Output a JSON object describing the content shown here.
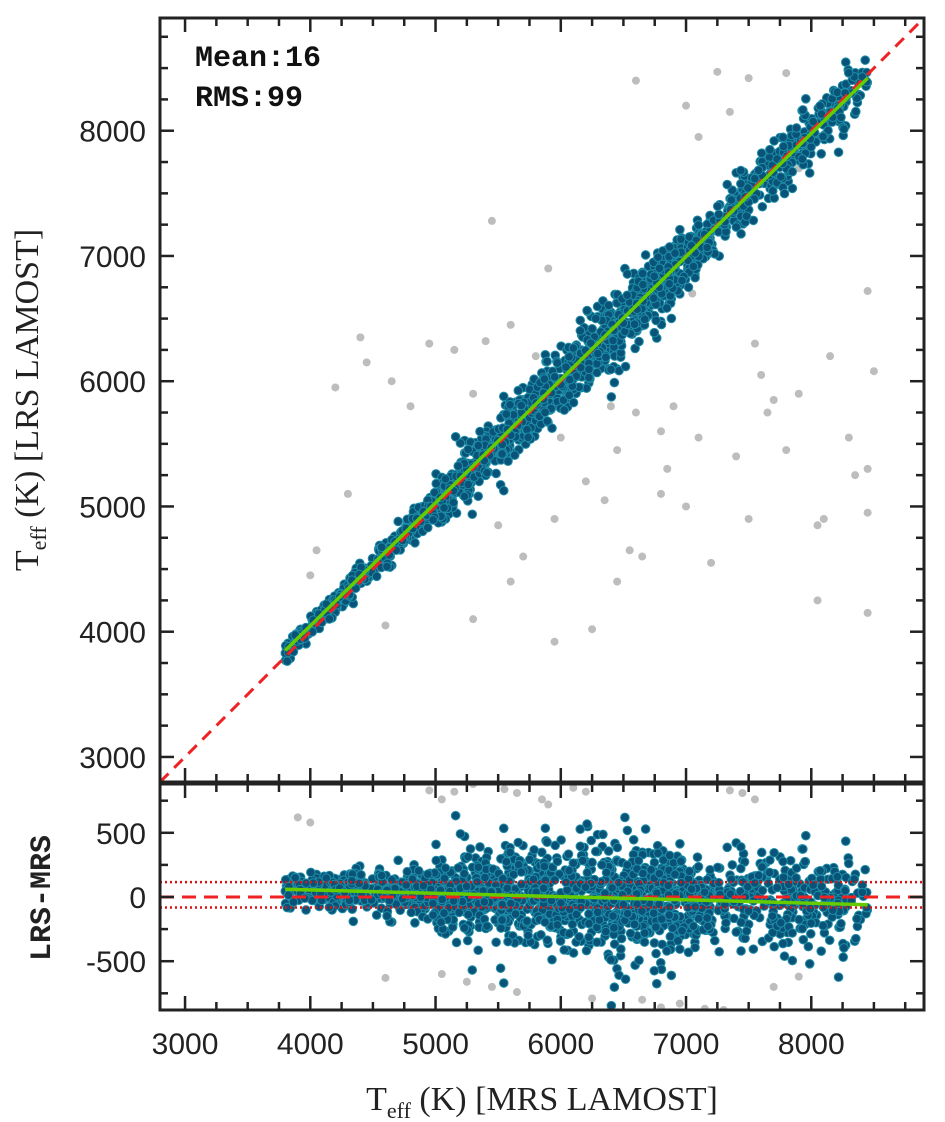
{
  "chart_data": [
    {
      "type": "scatter",
      "panel": "top",
      "xlim": [
        2800,
        8900
      ],
      "ylim": [
        2800,
        8900
      ],
      "x_ticks": [
        3000,
        4000,
        5000,
        6000,
        7000,
        8000
      ],
      "y_ticks": [
        3000,
        4000,
        5000,
        6000,
        7000,
        8000
      ],
      "y_tick_labels": [
        "3000",
        "4000",
        "5000",
        "6000",
        "7000",
        "8000"
      ],
      "ylabel": {
        "main": "T",
        "sub": "eff",
        "rest": " (K) [LRS LAMOST]"
      },
      "annotations": [
        "Mean:16",
        "RMS:99"
      ],
      "one_to_one_line": {
        "x": [
          2800,
          8900
        ],
        "y": [
          2800,
          8900
        ],
        "color": "#ee2222",
        "style": "dashed"
      },
      "fit_line": {
        "x": [
          3800,
          8450
        ],
        "y": [
          3850,
          8420
        ],
        "color": "#66cc00"
      },
      "main_cloud": {
        "x_range": [
          3800,
          8450
        ],
        "scatter_std": 110,
        "count": 1800,
        "color": "#0a5378",
        "edge": "#1f8fa8"
      },
      "outliers": {
        "color": "#bdbdbd",
        "points": [
          [
            6600,
            8400
          ],
          [
            7250,
            8470
          ],
          [
            7500,
            8420
          ],
          [
            7800,
            8460
          ],
          [
            7000,
            8200
          ],
          [
            7100,
            7950
          ],
          [
            7350,
            8150
          ],
          [
            7900,
            7700
          ],
          [
            5450,
            7280
          ],
          [
            5900,
            6900
          ],
          [
            6450,
            6630
          ],
          [
            7050,
            6700
          ],
          [
            7550,
            6300
          ],
          [
            8450,
            6720
          ],
          [
            8500,
            6080
          ],
          [
            4200,
            5950
          ],
          [
            4400,
            6350
          ],
          [
            4450,
            6150
          ],
          [
            4650,
            6000
          ],
          [
            4800,
            5800
          ],
          [
            4950,
            6300
          ],
          [
            5150,
            6250
          ],
          [
            5400,
            6320
          ],
          [
            5600,
            6450
          ],
          [
            4300,
            5100
          ],
          [
            4000,
            4450
          ],
          [
            4050,
            4650
          ],
          [
            4600,
            4050
          ],
          [
            5500,
            4850
          ],
          [
            5700,
            4600
          ],
          [
            5950,
            4900
          ],
          [
            6200,
            5200
          ],
          [
            6350,
            5050
          ],
          [
            6450,
            4400
          ],
          [
            6550,
            4650
          ],
          [
            6650,
            4600
          ],
          [
            6800,
            5100
          ],
          [
            7000,
            5000
          ],
          [
            7200,
            4550
          ],
          [
            7400,
            5400
          ],
          [
            7500,
            4900
          ],
          [
            7700,
            5850
          ],
          [
            7800,
            5450
          ],
          [
            7900,
            5900
          ],
          [
            8050,
            4850
          ],
          [
            8100,
            4900
          ],
          [
            8300,
            5550
          ],
          [
            8350,
            5250
          ],
          [
            8450,
            5300
          ],
          [
            8450,
            4950
          ],
          [
            8450,
            4150
          ],
          [
            8050,
            4250
          ],
          [
            6250,
            4020
          ],
          [
            5950,
            3920
          ],
          [
            6450,
            5450
          ],
          [
            6800,
            5600
          ],
          [
            6600,
            5750
          ],
          [
            6850,
            5300
          ],
          [
            5200,
            5200
          ],
          [
            5600,
            4400
          ],
          [
            5300,
            4100
          ],
          [
            7100,
            5550
          ],
          [
            6900,
            5800
          ],
          [
            6000,
            5550
          ],
          [
            7600,
            6050
          ],
          [
            7650,
            5750
          ],
          [
            8150,
            6200
          ],
          [
            5800,
            6200
          ],
          [
            5300,
            5900
          ],
          [
            6400,
            5800
          ]
        ]
      }
    },
    {
      "type": "scatter",
      "panel": "bottom",
      "xlim": [
        2800,
        8900
      ],
      "ylim": [
        -880,
        880
      ],
      "x_ticks": [
        3000,
        4000,
        5000,
        6000,
        7000,
        8000
      ],
      "x_tick_labels": [
        "3000",
        "4000",
        "5000",
        "6000",
        "7000",
        "8000"
      ],
      "y_ticks": [
        -500,
        0,
        500
      ],
      "y_tick_labels": [
        "-500",
        "0",
        "500"
      ],
      "xlabel": {
        "main": "T",
        "sub": "eff",
        "rest": " (K) [MRS LAMOST]"
      },
      "ylabel": "LRS-MRS",
      "zero_line": {
        "y": 0,
        "color": "#ee2222",
        "style": "dashed"
      },
      "rms_lines": {
        "y": [
          116,
          -82
        ],
        "color": "#ee2222",
        "style": "dotted"
      },
      "fit_line": {
        "x": [
          3800,
          8450
        ],
        "y": [
          60,
          -60
        ],
        "color": "#66cc00"
      },
      "residual_cloud": {
        "x_range": [
          3800,
          8450
        ],
        "count": 1800,
        "color": "#0a5378",
        "edge": "#1f8fa8"
      },
      "outliers": {
        "color": "#bdbdbd",
        "points": [
          [
            3900,
            620
          ],
          [
            4000,
            580
          ],
          [
            4600,
            -630
          ],
          [
            5150,
            820
          ],
          [
            5050,
            760
          ],
          [
            5300,
            880
          ],
          [
            5550,
            840
          ],
          [
            5650,
            810
          ],
          [
            5850,
            760
          ],
          [
            5900,
            720
          ],
          [
            6100,
            850
          ],
          [
            6200,
            820
          ],
          [
            5050,
            -600
          ],
          [
            5250,
            -660
          ],
          [
            5450,
            -700
          ],
          [
            5650,
            -740
          ],
          [
            6250,
            -790
          ],
          [
            6400,
            -850
          ],
          [
            6500,
            -900
          ],
          [
            6800,
            -860
          ],
          [
            6950,
            -830
          ],
          [
            7150,
            -870
          ],
          [
            7350,
            830
          ],
          [
            7450,
            810
          ],
          [
            7550,
            760
          ],
          [
            7700,
            -700
          ],
          [
            7900,
            -620
          ],
          [
            7300,
            -880
          ],
          [
            6650,
            -800
          ],
          [
            4950,
            830
          ]
        ]
      }
    }
  ]
}
